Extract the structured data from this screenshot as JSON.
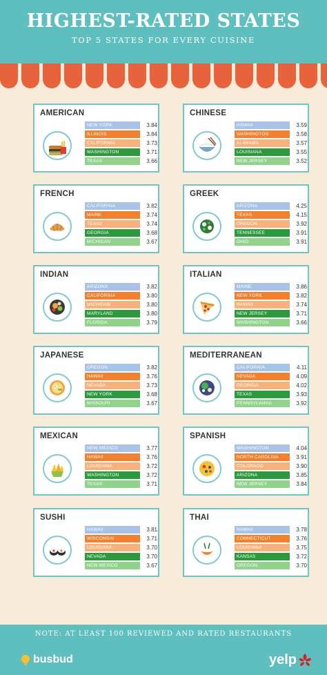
{
  "header": {
    "title": "HIGHEST-RATED STATES",
    "subtitle": "TOP 5 STATES FOR EVERY CUISINE"
  },
  "colors": {
    "teal": "#5fbfbf",
    "awning": "#e8623b",
    "rank1": "#a9c3e8",
    "rank2": "#f4802b",
    "rank3": "#f7b27b",
    "rank4": "#2a9a3c",
    "rank5": "#8fd48a"
  },
  "cuisines": [
    {
      "name": "AMERICAN",
      "icon": "burger-fries-icon",
      "rows": [
        {
          "state": "New York",
          "score": "3.84"
        },
        {
          "state": "Illinois",
          "score": "3.84"
        },
        {
          "state": "California",
          "score": "3.73"
        },
        {
          "state": "Washington",
          "score": "3.71"
        },
        {
          "state": "Texas",
          "score": "3.66"
        }
      ]
    },
    {
      "name": "CHINESE",
      "icon": "rice-bowl-icon",
      "rows": [
        {
          "state": "Hawaii",
          "score": "3.59"
        },
        {
          "state": "Washington",
          "score": "3.58"
        },
        {
          "state": "Alabama",
          "score": "3.57"
        },
        {
          "state": "Louisiana",
          "score": "3.55"
        },
        {
          "state": "New Jersey",
          "score": "3.52"
        }
      ]
    },
    {
      "name": "FRENCH",
      "icon": "croissant-icon",
      "rows": [
        {
          "state": "California",
          "score": "3.82"
        },
        {
          "state": "Maine",
          "score": "3.74"
        },
        {
          "state": "Texas",
          "score": "3.74"
        },
        {
          "state": "Georgia",
          "score": "3.68"
        },
        {
          "state": "Michigan",
          "score": "3.67"
        }
      ]
    },
    {
      "name": "GREEK",
      "icon": "salad-icon",
      "rows": [
        {
          "state": "Arizona",
          "score": "4.25"
        },
        {
          "state": "Texas",
          "score": "4.15"
        },
        {
          "state": "Oregon",
          "score": "3.92"
        },
        {
          "state": "Tennessee",
          "score": "3.91"
        },
        {
          "state": "Ohio",
          "score": "3.91"
        }
      ]
    },
    {
      "name": "INDIAN",
      "icon": "curry-plate-icon",
      "rows": [
        {
          "state": "Arizona",
          "score": "3.82"
        },
        {
          "state": "California",
          "score": "3.80"
        },
        {
          "state": "Michigan",
          "score": "3.80"
        },
        {
          "state": "Maryland",
          "score": "3.80"
        },
        {
          "state": "Florida",
          "score": "3.79"
        }
      ]
    },
    {
      "name": "ITALIAN",
      "icon": "pizza-slice-icon",
      "rows": [
        {
          "state": "Maine",
          "score": "3.86"
        },
        {
          "state": "New York",
          "score": "3.82"
        },
        {
          "state": "Hawaii",
          "score": "3.74"
        },
        {
          "state": "New Jersey",
          "score": "3.71"
        },
        {
          "state": "Washington",
          "score": "3.66"
        }
      ]
    },
    {
      "name": "JAPANESE",
      "icon": "ramen-bowl-icon",
      "rows": [
        {
          "state": "Oregon",
          "score": "3.82"
        },
        {
          "state": "Hawaii",
          "score": "3.76"
        },
        {
          "state": "Nevada",
          "score": "3.73"
        },
        {
          "state": "New York",
          "score": "3.68"
        },
        {
          "state": "Missouri",
          "score": "3.67"
        }
      ]
    },
    {
      "name": "MEDITERRANEAN",
      "icon": "meze-plate-icon",
      "rows": [
        {
          "state": "California",
          "score": "4.11"
        },
        {
          "state": "Nevada",
          "score": "4.09"
        },
        {
          "state": "Georgia",
          "score": "4.02"
        },
        {
          "state": "Texas",
          "score": "3.93"
        },
        {
          "state": "Pennsylvania",
          "score": "3.92"
        }
      ]
    },
    {
      "name": "MEXICAN",
      "icon": "nachos-icon",
      "rows": [
        {
          "state": "New Mexico",
          "score": "3.77"
        },
        {
          "state": "Hawaii",
          "score": "3.76"
        },
        {
          "state": "Louisiana",
          "score": "3.72"
        },
        {
          "state": "Washington",
          "score": "3.72"
        },
        {
          "state": "Texas",
          "score": "3.71"
        }
      ]
    },
    {
      "name": "SPANISH",
      "icon": "paella-icon",
      "rows": [
        {
          "state": "Washington",
          "score": "4.04"
        },
        {
          "state": "North Carolina",
          "score": "3.91"
        },
        {
          "state": "Colorado",
          "score": "3.90"
        },
        {
          "state": "Arizona",
          "score": "3.85"
        },
        {
          "state": "New Jersey",
          "score": "3.84"
        }
      ]
    },
    {
      "name": "SUSHI",
      "icon": "sushi-rolls-icon",
      "rows": [
        {
          "state": "Hawaii",
          "score": "3.81"
        },
        {
          "state": "Wisconsin",
          "score": "3.71"
        },
        {
          "state": "Louisiana",
          "score": "3.70"
        },
        {
          "state": "Nevada",
          "score": "3.70"
        },
        {
          "state": "New Mexico",
          "score": "3.67"
        }
      ]
    },
    {
      "name": "THAI",
      "icon": "thai-bowl-icon",
      "rows": [
        {
          "state": "Hawaii",
          "score": "3.78"
        },
        {
          "state": "Connecticut",
          "score": "3.76"
        },
        {
          "state": "Louisiana",
          "score": "3.75"
        },
        {
          "state": "Kansas",
          "score": "3.72"
        },
        {
          "state": "Oregon",
          "score": "3.70"
        }
      ]
    }
  ],
  "footer": {
    "note": "NOTE: AT LEAST 100 REVIEWED AND RATED RESTAURANTS",
    "left_brand": "busbud",
    "right_brand": "yelp"
  }
}
